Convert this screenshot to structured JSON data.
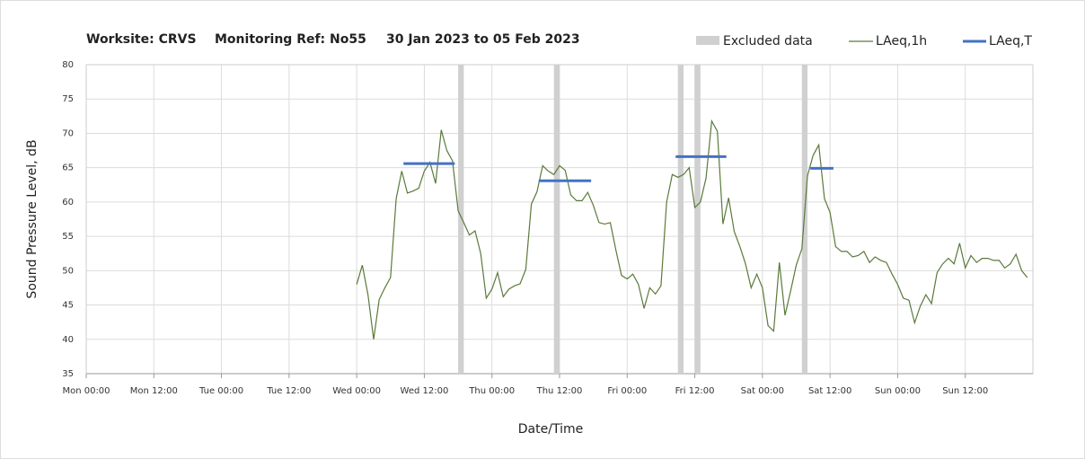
{
  "chart_data": {
    "type": "line",
    "title": [
      "Worksite: CRVS",
      "Monitoring Ref: No55",
      "30 Jan 2023 to 05 Feb 2023"
    ],
    "x_label": "Date/Time",
    "y_label": "Sound Pressure Level, dB",
    "xlim": [
      0,
      168
    ],
    "xticks": [
      {
        "value": 0,
        "label": "Mon 00:00"
      },
      {
        "value": 12,
        "label": "Mon 12:00"
      },
      {
        "value": 24,
        "label": "Tue 00:00"
      },
      {
        "value": 36,
        "label": "Tue 12:00"
      },
      {
        "value": 48,
        "label": "Wed 00:00"
      },
      {
        "value": 60,
        "label": "Wed 12:00"
      },
      {
        "value": 72,
        "label": "Thu 00:00"
      },
      {
        "value": 84,
        "label": "Thu 12:00"
      },
      {
        "value": 96,
        "label": "Fri 00:00"
      },
      {
        "value": 108,
        "label": "Fri 12:00"
      },
      {
        "value": 120,
        "label": "Sat 00:00"
      },
      {
        "value": 132,
        "label": "Sat 12:00"
      },
      {
        "value": 144,
        "label": "Sun 00:00"
      },
      {
        "value": 156,
        "label": "Sun 12:00"
      }
    ],
    "ylim": [
      35,
      80
    ],
    "yticks": [
      35,
      40,
      45,
      50,
      55,
      60,
      65,
      70,
      75,
      80
    ],
    "grid": true,
    "excluded": {
      "name": "Excluded data",
      "color": "#d0d0d0",
      "ranges": [
        [
          66,
          67
        ],
        [
          83,
          84
        ],
        [
          105,
          106
        ],
        [
          108,
          109
        ],
        [
          127,
          128
        ]
      ]
    },
    "series": [
      {
        "name": "LAeq,1h",
        "color": "#5a7a3a",
        "x": [
          48,
          49,
          50,
          51,
          52,
          53,
          54,
          55,
          56,
          57,
          58,
          59,
          60,
          61,
          62,
          63,
          64,
          65,
          66,
          67,
          68,
          69,
          70,
          71,
          72,
          73,
          74,
          75,
          76,
          77,
          78,
          79,
          80,
          81,
          82,
          83,
          84,
          85,
          86,
          87,
          88,
          89,
          90,
          91,
          92,
          93,
          94,
          95,
          96,
          97,
          98,
          99,
          100,
          101,
          102,
          103,
          104,
          105,
          106,
          107,
          108,
          109,
          110,
          111,
          112,
          113,
          114,
          115,
          116,
          117,
          118,
          119,
          120,
          121,
          122,
          123,
          124,
          125,
          126,
          127,
          128,
          129,
          130,
          131,
          132,
          133,
          134,
          135,
          136,
          137,
          138,
          139,
          140,
          141,
          142,
          143,
          144,
          145,
          146,
          147,
          148,
          149,
          150,
          151,
          152,
          153,
          154,
          155,
          156,
          157,
          158,
          159,
          160,
          161,
          162,
          163,
          164,
          165,
          166,
          167
        ],
        "values": [
          48.0,
          50.8,
          46.5,
          40.0,
          45.8,
          47.5,
          49.0,
          60.5,
          64.5,
          61.3,
          61.6,
          62.0,
          64.5,
          65.8,
          62.7,
          70.5,
          67.5,
          66.0,
          58.7,
          57.0,
          55.2,
          55.8,
          52.5,
          46.0,
          47.3,
          49.7,
          46.2,
          47.3,
          47.8,
          48.1,
          50.2,
          59.7,
          61.5,
          65.3,
          64.5,
          64.0,
          65.3,
          64.6,
          61.0,
          60.2,
          60.2,
          61.4,
          59.5,
          57.0,
          56.8,
          57.0,
          53.0,
          49.3,
          48.8,
          49.5,
          48.0,
          44.5,
          47.5,
          46.6,
          47.8,
          60.0,
          64.0,
          63.6,
          64.0,
          65.0,
          59.2,
          60.0,
          63.5,
          71.8,
          70.3,
          56.8,
          60.6,
          55.7,
          53.5,
          51.0,
          47.5,
          49.5,
          47.5,
          42.0,
          41.2,
          51.2,
          43.5,
          47.0,
          50.8,
          53.2,
          63.8,
          66.8,
          68.3,
          60.5,
          58.5,
          53.5,
          52.8,
          52.8,
          52.0,
          52.2,
          52.8,
          51.2,
          52.0,
          51.5,
          51.2,
          49.5,
          48.0,
          46.0,
          45.7,
          42.4,
          44.8,
          46.5,
          45.2,
          49.7,
          51.0,
          51.8,
          51.0,
          54.0,
          50.4,
          52.2,
          51.2,
          51.8,
          51.8,
          51.5,
          51.5,
          50.4,
          51.0,
          52.4,
          50.0,
          49.0
        ]
      },
      {
        "name": "LAeq,T",
        "color": "#4472c4",
        "ranges": [
          [
            56.3,
            65.4
          ],
          [
            80.3,
            89.6
          ],
          [
            104.6,
            113.6
          ],
          [
            128.5,
            132.6
          ]
        ],
        "values": [
          65.6,
          63.1,
          66.6,
          64.9
        ]
      }
    ]
  }
}
